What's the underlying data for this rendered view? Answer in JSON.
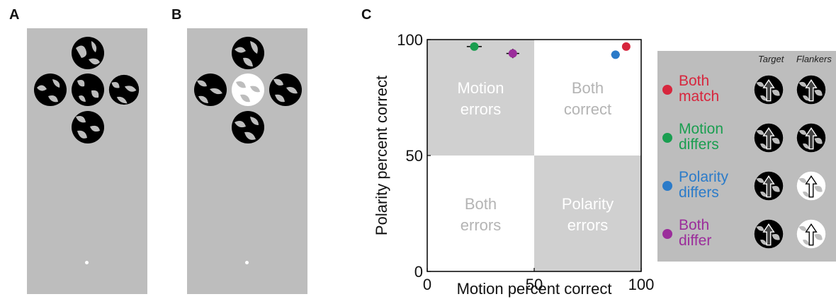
{
  "panels": {
    "a": {
      "letter": "A"
    },
    "b": {
      "letter": "B"
    },
    "c": {
      "letter": "C"
    }
  },
  "chart_data": {
    "type": "scatter",
    "xlabel": "Motion percent correct",
    "ylabel": "Polarity percent correct",
    "xlim": [
      0,
      100
    ],
    "ylim": [
      0,
      100
    ],
    "xticks": [
      "0",
      "50",
      "100"
    ],
    "yticks": [
      "0",
      "50",
      "100"
    ],
    "quadrants": [
      {
        "lines": [
          "Motion",
          "errors"
        ],
        "x": [
          0,
          50
        ],
        "y": [
          50,
          100
        ],
        "shade": true
      },
      {
        "lines": [
          "Both",
          "correct"
        ],
        "x": [
          50,
          100
        ],
        "y": [
          50,
          100
        ],
        "shade": false
      },
      {
        "lines": [
          "Both",
          "errors"
        ],
        "x": [
          0,
          50
        ],
        "y": [
          0,
          50
        ],
        "shade": false
      },
      {
        "lines": [
          "Polarity",
          "errors"
        ],
        "x": [
          50,
          100
        ],
        "y": [
          0,
          50
        ],
        "shade": true
      }
    ],
    "series": [
      {
        "name": "Both match",
        "color": "#d7263d",
        "x": 93,
        "y": 97,
        "xerr": 1.5,
        "yerr": 0.5
      },
      {
        "name": "Motion differs",
        "color": "#1a9e50",
        "x": 22,
        "y": 97,
        "xerr": 3.5,
        "yerr": 0.5
      },
      {
        "name": "Polarity differs",
        "color": "#2b7bc9",
        "x": 88,
        "y": 93.5,
        "xerr": 2,
        "yerr": 1
      },
      {
        "name": "Both differ",
        "color": "#9b2d9b",
        "x": 40,
        "y": 94,
        "xerr": 3,
        "yerr": 2
      }
    ],
    "grid": false
  },
  "legend": {
    "columns": [
      "Target",
      "Flankers"
    ],
    "items": [
      {
        "lines": [
          "Both",
          "match"
        ],
        "color": "#d7263d",
        "flanker": "black"
      },
      {
        "lines": [
          "Motion",
          "differs"
        ],
        "color": "#1a9e50",
        "flanker": "black"
      },
      {
        "lines": [
          "Polarity",
          "differs"
        ],
        "color": "#2b7bc9",
        "flanker": "white"
      },
      {
        "lines": [
          "Both",
          "differ"
        ],
        "color": "#9b2d9b",
        "flanker": "white"
      }
    ]
  }
}
